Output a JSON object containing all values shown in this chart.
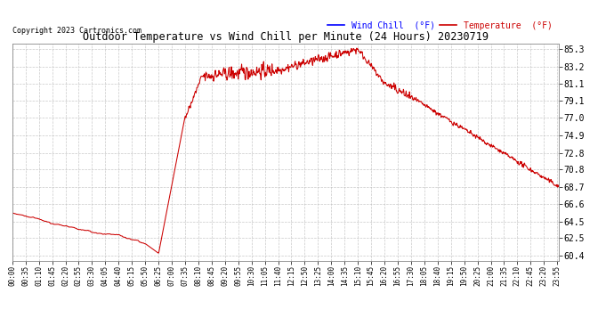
{
  "title": "Outdoor Temperature vs Wind Chill per Minute (24 Hours) 20230719",
  "copyright": "Copyright 2023 Cartronics.com",
  "legend_wind_chill": "Wind Chill  (°F)",
  "legend_temperature": "Temperature  (°F)",
  "wind_chill_color": "#0000ff",
  "temperature_color": "#cc0000",
  "line_color": "#cc0000",
  "background_color": "#ffffff",
  "plot_bg_color": "#ffffff",
  "grid_color": "#bbbbbb",
  "title_color": "#000000",
  "yticks": [
    60.4,
    62.5,
    64.5,
    66.6,
    68.7,
    70.8,
    72.8,
    74.9,
    77.0,
    79.1,
    81.1,
    83.2,
    85.3
  ],
  "ymin": 59.8,
  "ymax": 86.0,
  "n_minutes": 1440,
  "figwidth": 6.9,
  "figheight": 3.75,
  "dpi": 100
}
